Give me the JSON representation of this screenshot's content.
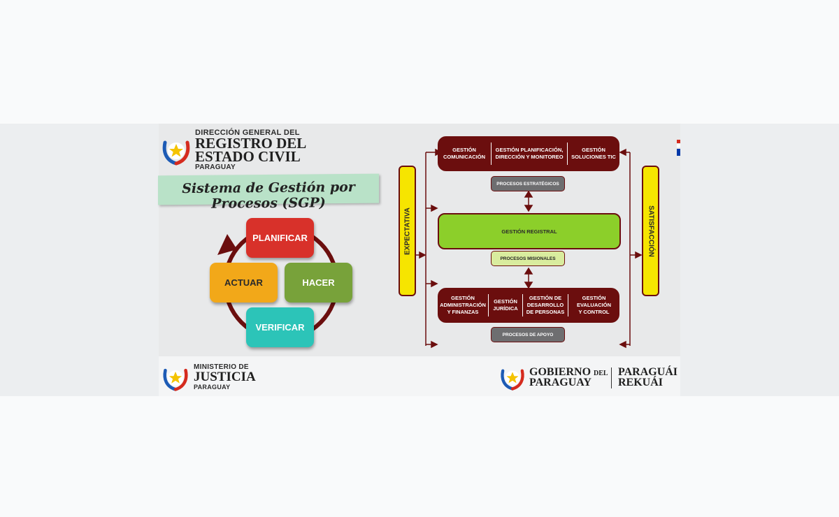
{
  "header": {
    "line1": "DIRECCIÓN GENERAL DEL",
    "line2": "REGISTRO DEL",
    "line3": "ESTADO CIVIL",
    "line4": "PARAGUAY"
  },
  "banner": {
    "title": "Sistema de Gestión por Procesos (SGP)"
  },
  "pdca": {
    "planificar": "PLANIFICAR",
    "hacer": "HACER",
    "verificar": "VERIFICAR",
    "actuar": "ACTUAR"
  },
  "process_map": {
    "left_bar": "EXPECTATIVA",
    "right_bar": "SATISFACCIÓN",
    "strategic": {
      "cells": [
        "GESTIÓN\nCOMUNICACIÓN",
        "GESTIÓN PLANIFICACIÓN,\nDIRECCIÓN Y MONITOREO",
        "GESTIÓN\nSOLUCIONES TIC"
      ],
      "label": "PROCESOS ESTRATÉGICOS"
    },
    "mission": {
      "cell": "GESTIÓN REGISTRAL",
      "label": "PROCESOS MISIONALES"
    },
    "support": {
      "cells": [
        "GESTIÓN\nADMINISTRACIÓN\nY FINANZAS",
        "GESTIÓN\nJURÍDICA",
        "GESTIÓN DE\nDESARROLLO\nDE PERSONAS",
        "GESTIÓN\nEVALUACIÓN\nY CONTROL"
      ],
      "label": "PROCESOS DE APOYO"
    }
  },
  "footer": {
    "ministerio": "MINISTERIO DE",
    "justicia": "JUSTICIA",
    "paraguay": "PARAGUAY",
    "gobierno": "GOBIERNO",
    "del": "DEL",
    "gob_paraguay": "PARAGUAY",
    "paraguai": "PARAGUÁI",
    "rekuai": "REKUÁI"
  },
  "colors": {
    "dark_red": "#6b0e0e",
    "yellow": "#f6e500",
    "green": "#8ccf2a",
    "planificar": "#d8312a",
    "hacer": "#78a23a",
    "verificar": "#2cc4b8",
    "actuar": "#f2a819"
  }
}
